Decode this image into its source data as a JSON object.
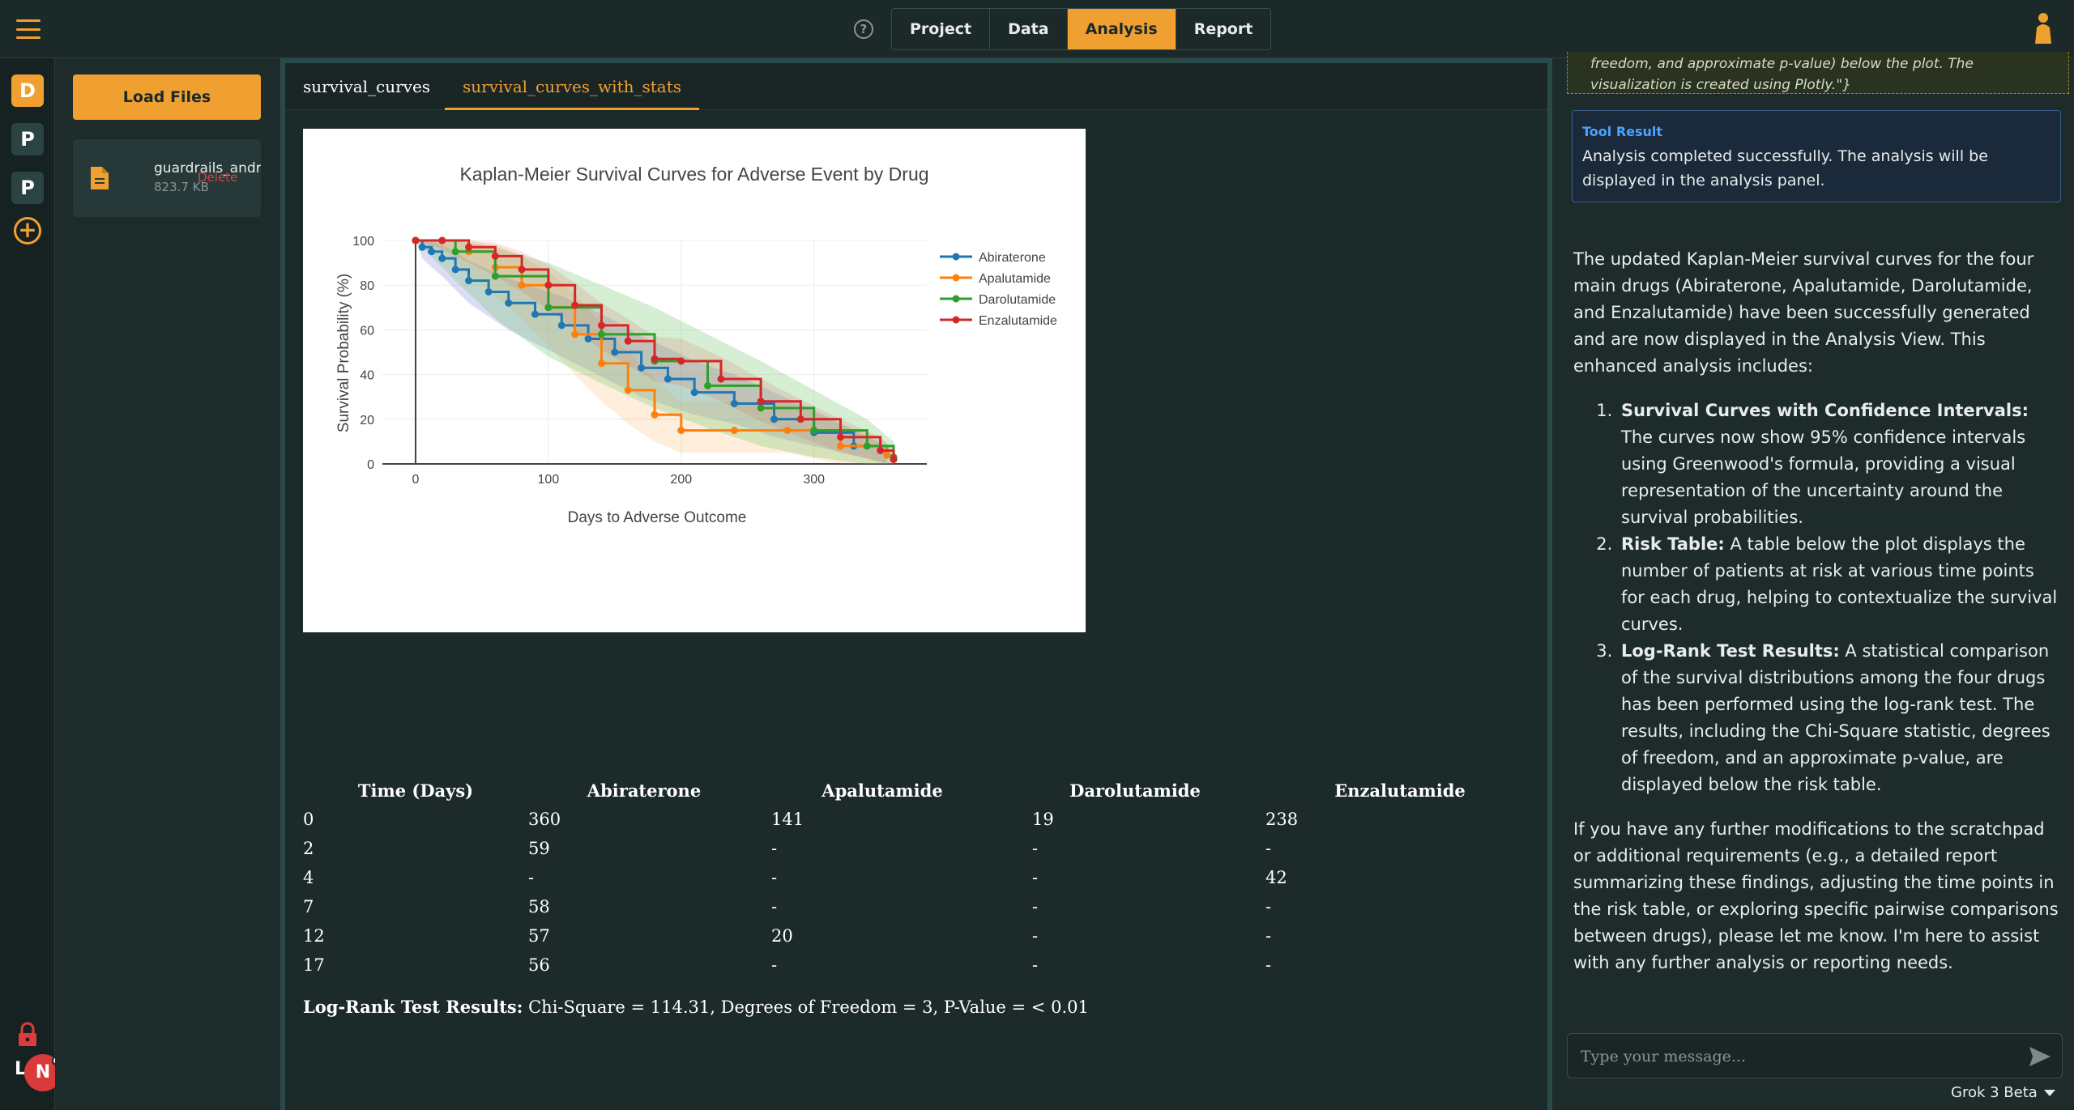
{
  "header": {
    "nav_tabs": [
      {
        "label": "Project"
      },
      {
        "label": "Data"
      },
      {
        "label": "Analysis"
      },
      {
        "label": "Report"
      }
    ],
    "active_tab": "Analysis",
    "help": "?"
  },
  "rail": {
    "projects": [
      "D",
      "P",
      "P"
    ],
    "add": "+",
    "avatar_initial": "N",
    "rail_letter": "L"
  },
  "files": {
    "load_label": "Load Files",
    "items": [
      {
        "name": "guardrails_andr",
        "size": "823.7 KB",
        "delete_label": "Delete"
      }
    ]
  },
  "analysis": {
    "tabs": [
      {
        "label": "survival_curves"
      },
      {
        "label": "survival_curves_with_stats"
      }
    ],
    "risk_table": {
      "headers": [
        "Time (Days)",
        "Abiraterone",
        "Apalutamide",
        "Darolutamide",
        "Enzalutamide"
      ],
      "rows": [
        [
          "0",
          "360",
          "141",
          "19",
          "238"
        ],
        [
          "2",
          "59",
          "-",
          "-",
          "-"
        ],
        [
          "4",
          "-",
          "-",
          "-",
          "42"
        ],
        [
          "7",
          "58",
          "-",
          "-",
          "-"
        ],
        [
          "12",
          "57",
          "20",
          "-",
          "-"
        ],
        [
          "17",
          "56",
          "-",
          "-",
          "-"
        ]
      ]
    },
    "logrank": {
      "label": "Log-Rank Test Results:",
      "text": " Chi-Square = 114.31, Degrees of Freedom = 3, P-Value = < 0.01"
    }
  },
  "chart_data": {
    "type": "line",
    "title": "Kaplan-Meier Survival Curves for Adverse Event by Drug",
    "xlabel": "Days to Adverse Outcome",
    "ylabel": "Survival Probability (%)",
    "xlim": [
      -25,
      385
    ],
    "ylim": [
      0,
      100
    ],
    "x_ticks": [
      0,
      100,
      200,
      300
    ],
    "y_ticks": [
      0,
      20,
      40,
      60,
      80,
      100
    ],
    "grid": true,
    "legend": "top-right",
    "series": [
      {
        "name": "Abiraterone",
        "color": "#1f77b4",
        "x": [
          0,
          5,
          12,
          20,
          30,
          40,
          55,
          70,
          90,
          110,
          130,
          150,
          170,
          190,
          210,
          240,
          270,
          300,
          330,
          355
        ],
        "y": [
          100,
          97,
          95,
          92,
          87,
          82,
          77,
          72,
          67,
          62,
          56,
          50,
          43,
          38,
          32,
          27,
          20,
          14,
          8,
          4
        ],
        "band_lower": [
          100,
          92,
          88,
          84,
          78,
          72,
          66,
          60,
          54,
          48,
          42,
          36,
          30,
          26,
          22,
          18,
          12,
          8,
          4,
          0
        ],
        "band_upper": [
          100,
          100,
          100,
          98,
          95,
          91,
          87,
          83,
          79,
          75,
          70,
          64,
          57,
          52,
          46,
          40,
          32,
          24,
          15,
          8
        ]
      },
      {
        "name": "Apalutamide",
        "color": "#ff7f0e",
        "x": [
          0,
          20,
          40,
          60,
          80,
          100,
          120,
          140,
          160,
          180,
          200,
          240,
          280,
          320,
          355
        ],
        "y": [
          100,
          100,
          95,
          88,
          80,
          70,
          58,
          45,
          33,
          22,
          15,
          15,
          15,
          8,
          4
        ],
        "band_lower": [
          100,
          95,
          85,
          75,
          65,
          53,
          40,
          28,
          18,
          10,
          5,
          5,
          5,
          0,
          0
        ],
        "band_upper": [
          100,
          100,
          100,
          98,
          93,
          86,
          76,
          63,
          50,
          38,
          28,
          28,
          28,
          18,
          10
        ]
      },
      {
        "name": "Darolutamide",
        "color": "#2ca02c",
        "x": [
          0,
          30,
          60,
          100,
          140,
          180,
          220,
          260,
          300,
          340,
          360
        ],
        "y": [
          100,
          95,
          84,
          70,
          58,
          46,
          35,
          25,
          15,
          8,
          3
        ],
        "band_lower": [
          100,
          82,
          65,
          48,
          36,
          25,
          16,
          8,
          3,
          0,
          0
        ],
        "band_upper": [
          100,
          100,
          97,
          90,
          80,
          70,
          58,
          46,
          33,
          20,
          10
        ]
      },
      {
        "name": "Enzalutamide",
        "color": "#d62728",
        "x": [
          0,
          20,
          40,
          60,
          80,
          100,
          120,
          140,
          160,
          180,
          200,
          230,
          260,
          290,
          320,
          350,
          360
        ],
        "y": [
          100,
          100,
          97,
          93,
          87,
          80,
          71,
          62,
          55,
          47,
          46,
          38,
          28,
          20,
          12,
          6,
          2
        ],
        "band_lower": [
          100,
          96,
          90,
          84,
          77,
          69,
          60,
          51,
          44,
          37,
          35,
          28,
          19,
          12,
          5,
          1,
          0
        ],
        "band_upper": [
          100,
          100,
          100,
          99,
          95,
          89,
          81,
          72,
          65,
          57,
          56,
          48,
          38,
          29,
          20,
          12,
          6
        ]
      }
    ]
  },
  "chat": {
    "tool_call_tail": "freedom, and approximate p-value) below the plot. The visualization is created using Plotly.\"}",
    "tool_result_label": "Tool Result",
    "tool_result_text": "Analysis completed successfully. The analysis will be displayed in the analysis panel.",
    "intro": "The updated Kaplan-Meier survival curves for the four main drugs (Abiraterone, Apalutamide, Darolutamide, and Enzalutamide) have been successfully generated and are now displayed in the Analysis View. This enhanced analysis includes:",
    "items": [
      {
        "title": "Survival Curves with Confidence Intervals:",
        "text": " The curves now show 95% confidence intervals using Greenwood's formula, providing a visual representation of the uncertainty around the survival probabilities."
      },
      {
        "title": "Risk Table:",
        "text": " A table below the plot displays the number of patients at risk at various time points for each drug, helping to contextualize the survival curves."
      },
      {
        "title": "Log-Rank Test Results:",
        "text": " A statistical comparison of the survival distributions among the four drugs has been performed using the log-rank test. The results, including the Chi-Square statistic, degrees of freedom, and an approximate p-value, are displayed below the risk table."
      }
    ],
    "closing": "If you have any further modifications to the scratchpad or additional requirements (e.g., a detailed report summarizing these findings, adjusting the time points in the risk table, or exploring specific pairwise comparisons between drugs), please let me know. I'm here to assist with any further analysis or reporting needs.",
    "input_placeholder": "Type your message...",
    "model_label": "Grok 3 Beta"
  },
  "colors": {
    "accent": "#f0a030",
    "background": "#1d2b2b",
    "tool_result_border": "#3b5f8c"
  }
}
